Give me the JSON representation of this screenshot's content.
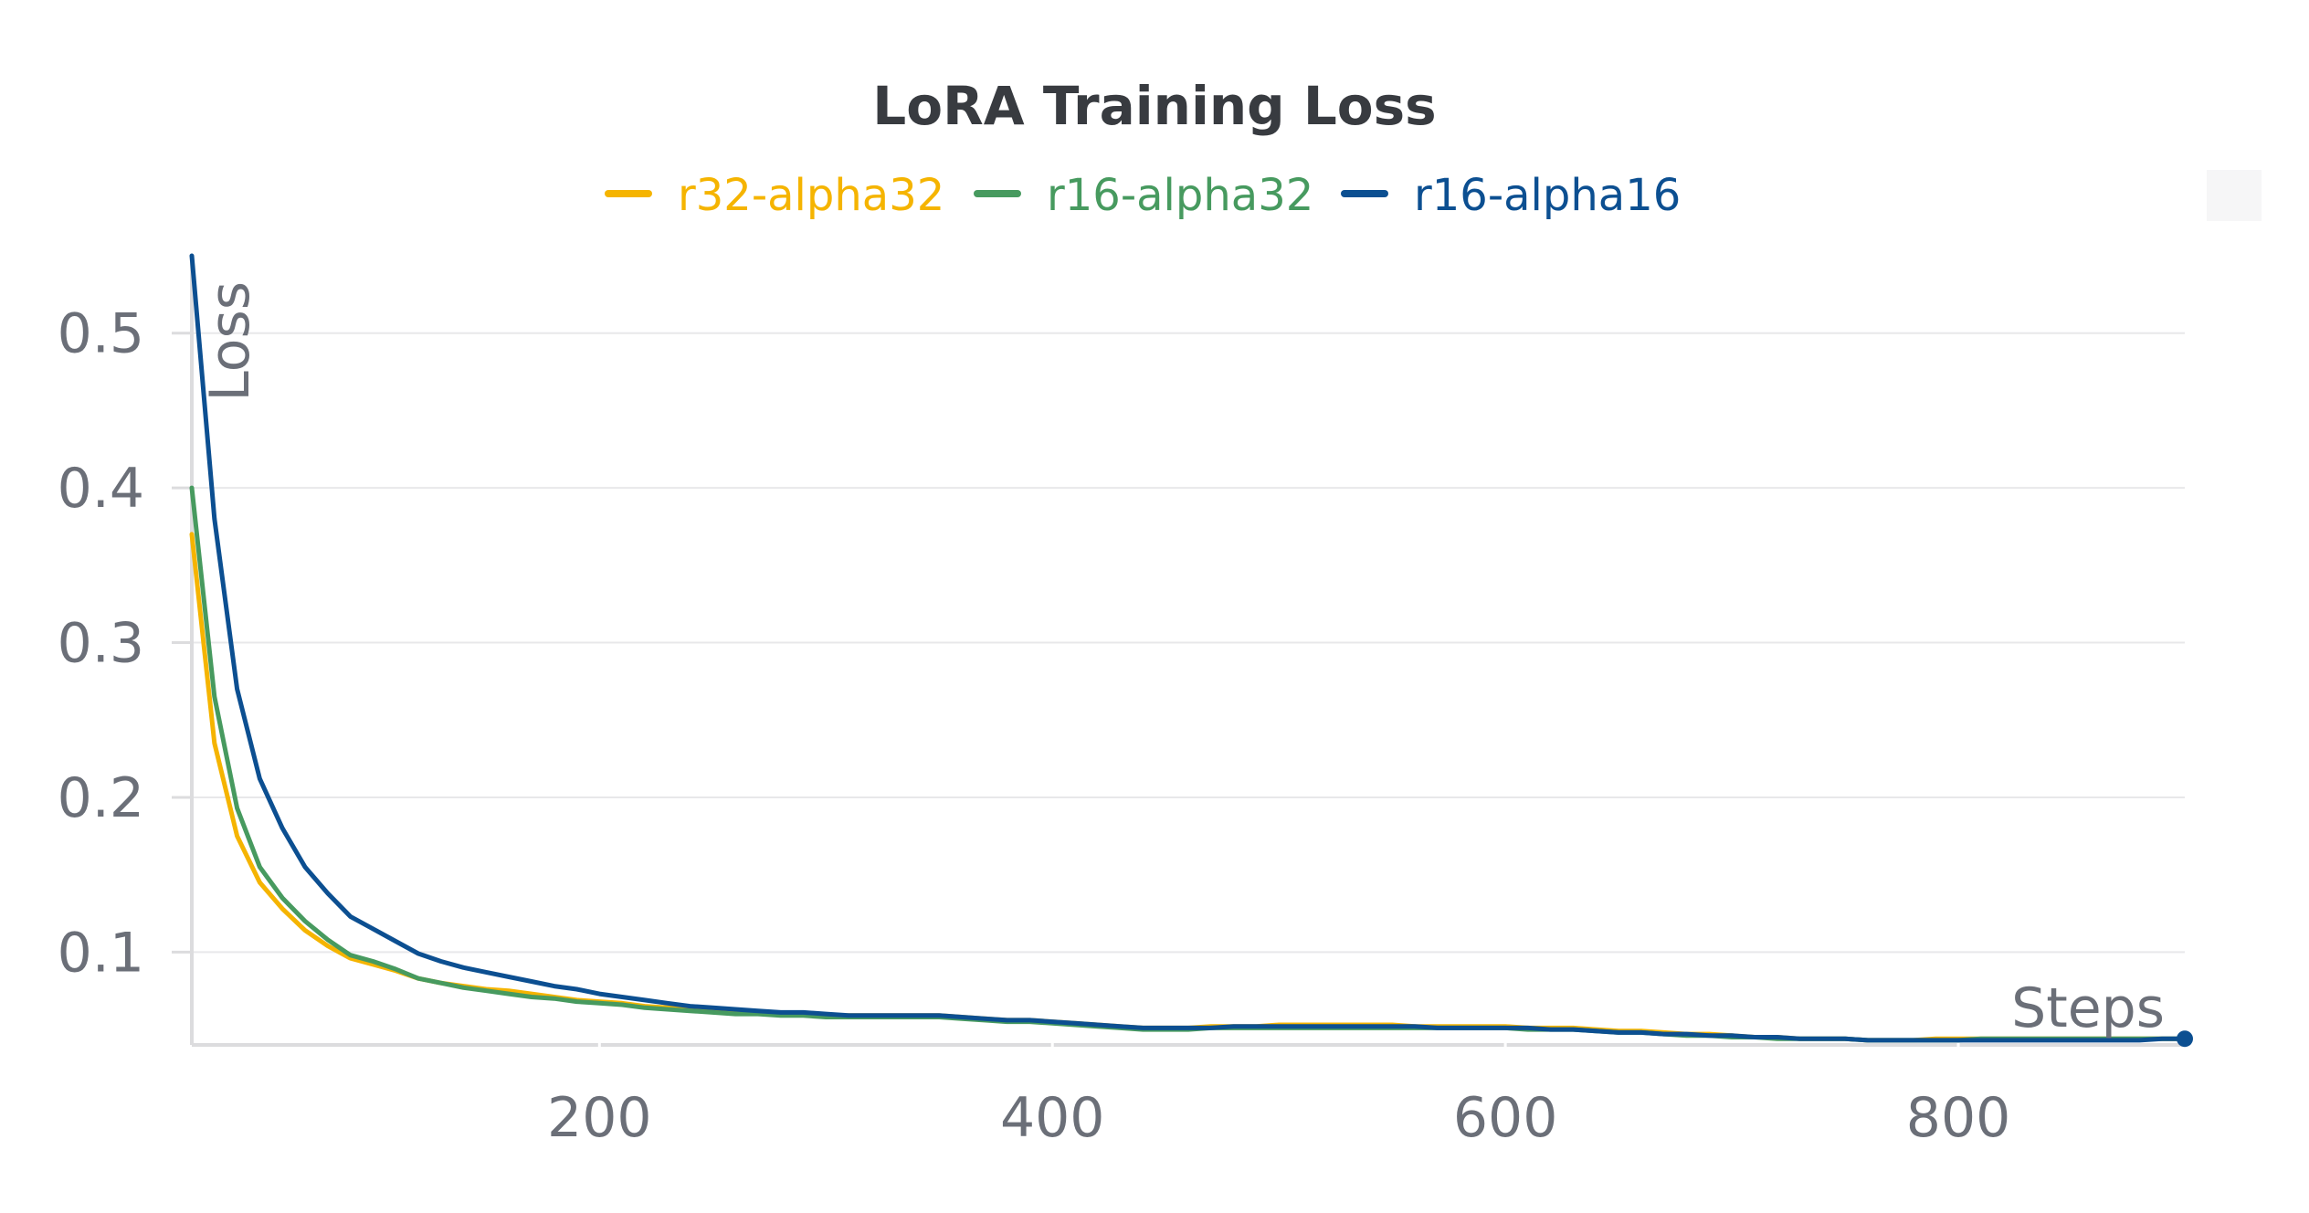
{
  "chart_data": {
    "type": "line",
    "title": "LoRA Training Loss",
    "xlabel": "Steps",
    "ylabel": "Loss",
    "xlim": [
      20,
      900
    ],
    "ylim": [
      0.04,
      0.55
    ],
    "xticks": [
      200,
      400,
      600,
      800
    ],
    "yticks": [
      0.1,
      0.2,
      0.3,
      0.4,
      0.5
    ],
    "grid": true,
    "legend_position": "top-center",
    "series": [
      {
        "name": "r32-alpha32",
        "color": "#f5b400",
        "x": [
          20,
          30,
          40,
          50,
          60,
          70,
          80,
          90,
          100,
          110,
          120,
          130,
          140,
          150,
          160,
          170,
          180,
          190,
          200,
          210,
          220,
          230,
          240,
          250,
          260,
          270,
          280,
          290,
          300,
          310,
          320,
          330,
          340,
          350,
          360,
          370,
          380,
          390,
          400,
          410,
          420,
          430,
          440,
          450,
          460,
          470,
          480,
          490,
          500,
          510,
          520,
          530,
          540,
          550,
          560,
          570,
          580,
          590,
          600,
          610,
          620,
          630,
          640,
          650,
          660,
          670,
          680,
          690,
          700,
          710,
          720,
          730,
          740,
          750,
          760,
          770,
          780,
          790,
          800,
          810,
          820,
          830,
          840,
          850,
          860,
          870,
          880,
          890,
          900
        ],
        "y": [
          0.37,
          0.235,
          0.175,
          0.145,
          0.128,
          0.114,
          0.104,
          0.096,
          0.092,
          0.088,
          0.083,
          0.08,
          0.078,
          0.076,
          0.075,
          0.073,
          0.071,
          0.069,
          0.068,
          0.067,
          0.065,
          0.064,
          0.063,
          0.062,
          0.061,
          0.061,
          0.06,
          0.06,
          0.059,
          0.059,
          0.059,
          0.059,
          0.059,
          0.059,
          0.058,
          0.057,
          0.056,
          0.056,
          0.055,
          0.054,
          0.053,
          0.052,
          0.051,
          0.051,
          0.051,
          0.052,
          0.052,
          0.052,
          0.053,
          0.053,
          0.053,
          0.053,
          0.053,
          0.053,
          0.052,
          0.052,
          0.052,
          0.052,
          0.052,
          0.051,
          0.051,
          0.051,
          0.05,
          0.049,
          0.049,
          0.048,
          0.047,
          0.047,
          0.046,
          0.045,
          0.045,
          0.044,
          0.044,
          0.044,
          0.043,
          0.043,
          0.043,
          0.044,
          0.044,
          0.044,
          0.044,
          0.044,
          0.044,
          0.044,
          0.044,
          0.044,
          0.044,
          0.044,
          0.044
        ]
      },
      {
        "name": "r16-alpha32",
        "color": "#479a5f",
        "x": [
          20,
          30,
          40,
          50,
          60,
          70,
          80,
          90,
          100,
          110,
          120,
          130,
          140,
          150,
          160,
          170,
          180,
          190,
          200,
          210,
          220,
          230,
          240,
          250,
          260,
          270,
          280,
          290,
          300,
          310,
          320,
          330,
          340,
          350,
          360,
          370,
          380,
          390,
          400,
          410,
          420,
          430,
          440,
          450,
          460,
          470,
          480,
          490,
          500,
          510,
          520,
          530,
          540,
          550,
          560,
          570,
          580,
          590,
          600,
          610,
          620,
          630,
          640,
          650,
          660,
          670,
          680,
          690,
          700,
          710,
          720,
          730,
          740,
          750,
          760,
          770,
          780,
          790,
          800,
          810,
          820,
          830,
          840,
          850,
          860,
          870,
          880,
          890,
          900
        ],
        "y": [
          0.4,
          0.265,
          0.193,
          0.155,
          0.135,
          0.12,
          0.108,
          0.098,
          0.094,
          0.089,
          0.083,
          0.08,
          0.077,
          0.075,
          0.073,
          0.071,
          0.07,
          0.068,
          0.067,
          0.066,
          0.064,
          0.063,
          0.062,
          0.061,
          0.06,
          0.06,
          0.059,
          0.059,
          0.058,
          0.058,
          0.058,
          0.058,
          0.058,
          0.058,
          0.057,
          0.056,
          0.055,
          0.055,
          0.054,
          0.053,
          0.052,
          0.051,
          0.05,
          0.05,
          0.05,
          0.051,
          0.051,
          0.051,
          0.051,
          0.051,
          0.051,
          0.051,
          0.051,
          0.051,
          0.051,
          0.051,
          0.051,
          0.051,
          0.051,
          0.05,
          0.05,
          0.05,
          0.049,
          0.048,
          0.048,
          0.047,
          0.046,
          0.046,
          0.045,
          0.045,
          0.044,
          0.044,
          0.044,
          0.044,
          0.043,
          0.043,
          0.043,
          0.043,
          0.043,
          0.044,
          0.044,
          0.044,
          0.044,
          0.044,
          0.044,
          0.044,
          0.044,
          0.044,
          0.044
        ]
      },
      {
        "name": "r16-alpha16",
        "color": "#0c4f91",
        "x": [
          20,
          30,
          40,
          50,
          60,
          70,
          80,
          90,
          100,
          110,
          120,
          130,
          140,
          150,
          160,
          170,
          180,
          190,
          200,
          210,
          220,
          230,
          240,
          250,
          260,
          270,
          280,
          290,
          300,
          310,
          320,
          330,
          340,
          350,
          360,
          370,
          380,
          390,
          400,
          410,
          420,
          430,
          440,
          450,
          460,
          470,
          480,
          490,
          500,
          510,
          520,
          530,
          540,
          550,
          560,
          570,
          580,
          590,
          600,
          610,
          620,
          630,
          640,
          650,
          660,
          670,
          680,
          690,
          700,
          710,
          720,
          730,
          740,
          750,
          760,
          770,
          780,
          790,
          800,
          810,
          820,
          830,
          840,
          850,
          860,
          870,
          880,
          890,
          900
        ],
        "y": [
          0.55,
          0.38,
          0.27,
          0.212,
          0.18,
          0.155,
          0.138,
          0.123,
          0.115,
          0.107,
          0.099,
          0.094,
          0.09,
          0.087,
          0.084,
          0.081,
          0.078,
          0.076,
          0.073,
          0.071,
          0.069,
          0.067,
          0.065,
          0.064,
          0.063,
          0.062,
          0.061,
          0.061,
          0.06,
          0.059,
          0.059,
          0.059,
          0.059,
          0.059,
          0.058,
          0.057,
          0.056,
          0.056,
          0.055,
          0.054,
          0.053,
          0.052,
          0.051,
          0.051,
          0.051,
          0.051,
          0.052,
          0.052,
          0.052,
          0.052,
          0.052,
          0.052,
          0.052,
          0.052,
          0.052,
          0.051,
          0.051,
          0.051,
          0.051,
          0.051,
          0.05,
          0.05,
          0.049,
          0.048,
          0.048,
          0.047,
          0.047,
          0.046,
          0.046,
          0.045,
          0.045,
          0.044,
          0.044,
          0.044,
          0.043,
          0.043,
          0.043,
          0.043,
          0.043,
          0.043,
          0.043,
          0.043,
          0.043,
          0.043,
          0.043,
          0.043,
          0.043,
          0.044,
          0.044
        ]
      }
    ]
  }
}
